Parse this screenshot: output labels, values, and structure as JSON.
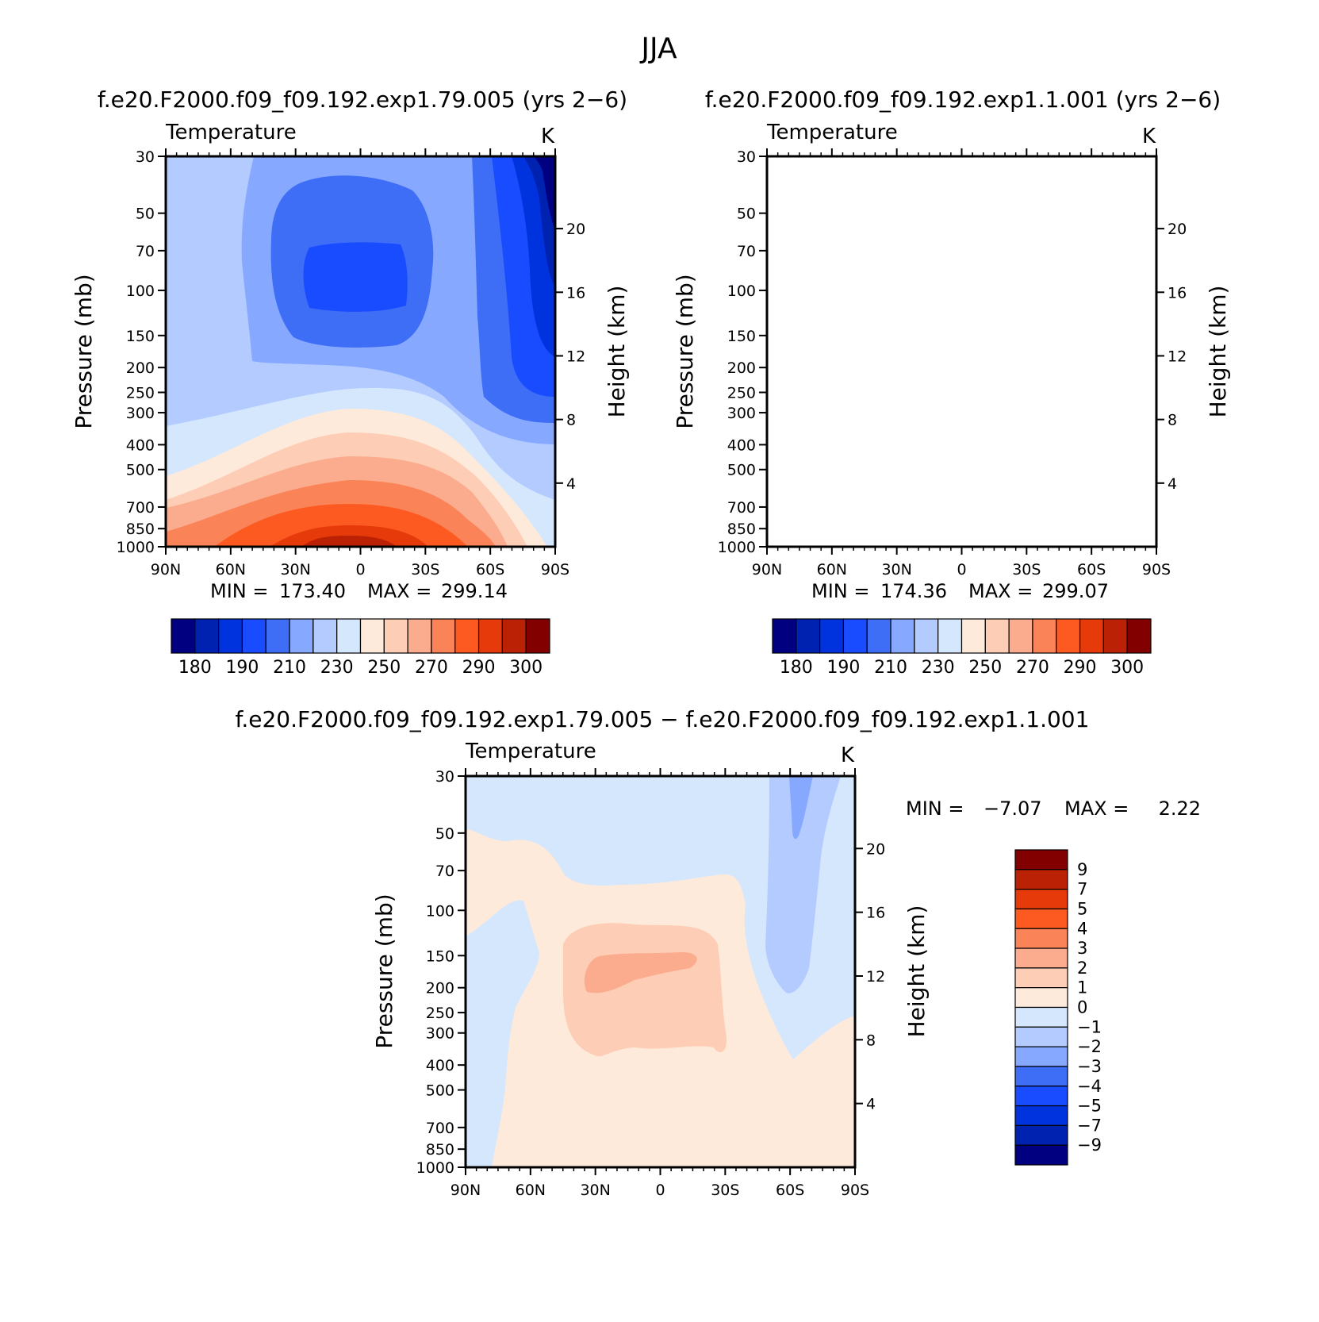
{
  "figure": {
    "title": "JJA",
    "panels": {
      "left_title": "f.e20.F2000.f09_f09.192.exp1.79.005 (yrs 2−6)",
      "right_title": "f.e20.F2000.f09_f09.192.exp1.1.001 (yrs 2−6)",
      "diff_title": "f.e20.F2000.f09_f09.192.exp1.79.005 − f.e20.F2000.f09_f09.192.exp1.1.001"
    },
    "axis_text": {
      "ylabel": "Pressure (mb)",
      "ylabel_right": "Height (km)",
      "variable": "Temperature",
      "units": "K"
    },
    "stats": {
      "left": {
        "min_label": "MIN =",
        "min": "173.40",
        "max_label": "MAX =",
        "max": "299.14"
      },
      "right": {
        "min_label": "MIN =",
        "min": "174.36",
        "max_label": "MAX =",
        "max": "299.07"
      },
      "diff": {
        "min_label": "MIN =",
        "min": "−7.07",
        "max_label": "MAX =",
        "max": "2.22"
      }
    }
  },
  "chart_data": [
    {
      "type": "heatmap",
      "name": "left",
      "title": "f.e20.F2000.f09_f09.192.exp1.79.005 (yrs 2−6)",
      "subtitle": "Temperature",
      "units": "K",
      "xlabel": "",
      "ylabel": "Pressure (mb)",
      "ylabel_right": "Height (km)",
      "x_ticks": [
        "90N",
        "60N",
        "30N",
        "0",
        "30S",
        "60S",
        "90S"
      ],
      "y_ticks": [
        30,
        50,
        70,
        100,
        150,
        200,
        250,
        300,
        400,
        500,
        700,
        850,
        1000
      ],
      "y_scale": "log",
      "height_ticks": [
        20,
        16,
        12,
        8,
        4
      ],
      "min": 173.4,
      "max": 299.14,
      "colorbar": {
        "levels": [
          175,
          180,
          185,
          190,
          200,
          210,
          220,
          230,
          240,
          250,
          260,
          270,
          280,
          290,
          300
        ],
        "tick_labels": [
          "180",
          "190",
          "210",
          "230",
          "250",
          "270",
          "290",
          "300"
        ],
        "colors": [
          "#000080",
          "#0022b0",
          "#0033dd",
          "#1a4cff",
          "#3f6ef6",
          "#86a9ff",
          "#b4cbff",
          "#d5e7fd",
          "#feeadb",
          "#fdcdb6",
          "#fcac8e",
          "#fb8358",
          "#fd5a22",
          "#e73a0a",
          "#bb2205",
          "#830000"
        ]
      }
    },
    {
      "type": "heatmap",
      "name": "right",
      "title": "f.e20.F2000.f09_f09.192.exp1.1.001 (yrs 2−6)",
      "subtitle": "Temperature",
      "units": "K",
      "xlabel": "",
      "ylabel": "Pressure (mb)",
      "ylabel_right": "Height (km)",
      "x_ticks": [
        "90N",
        "60N",
        "30N",
        "0",
        "30S",
        "60S",
        "90S"
      ],
      "y_ticks": [
        30,
        50,
        70,
        100,
        150,
        200,
        250,
        300,
        400,
        500,
        700,
        850,
        1000
      ],
      "y_scale": "log",
      "height_ticks": [
        20,
        16,
        12,
        8,
        4
      ],
      "min": 174.36,
      "max": 299.07,
      "colorbar": {
        "levels": [
          175,
          180,
          185,
          190,
          200,
          210,
          220,
          230,
          240,
          250,
          260,
          270,
          280,
          290,
          300
        ],
        "tick_labels": [
          "180",
          "190",
          "210",
          "230",
          "250",
          "270",
          "290",
          "300"
        ],
        "colors": [
          "#000080",
          "#0022b0",
          "#0033dd",
          "#1a4cff",
          "#3f6ef6",
          "#86a9ff",
          "#b4cbff",
          "#d5e7fd",
          "#feeadb",
          "#fdcdb6",
          "#fcac8e",
          "#fb8358",
          "#fd5a22",
          "#e73a0a",
          "#bb2205",
          "#830000"
        ]
      }
    },
    {
      "type": "heatmap",
      "name": "difference",
      "title": "f.e20.F2000.f09_f09.192.exp1.79.005 − f.e20.F2000.f09_f09.192.exp1.1.001",
      "subtitle": "Temperature",
      "units": "K",
      "xlabel": "",
      "ylabel": "Pressure (mb)",
      "ylabel_right": "Height (km)",
      "x_ticks": [
        "90N",
        "60N",
        "30N",
        "0",
        "30S",
        "60S",
        "90S"
      ],
      "y_ticks": [
        30,
        50,
        70,
        100,
        150,
        200,
        250,
        300,
        400,
        500,
        700,
        850,
        1000
      ],
      "y_scale": "log",
      "height_ticks": [
        20,
        16,
        12,
        8,
        4
      ],
      "min": -7.07,
      "max": 2.22,
      "colorbar": {
        "orientation": "vertical",
        "tick_labels": [
          "9",
          "7",
          "5",
          "4",
          "3",
          "2",
          "1",
          "0",
          "−1",
          "−2",
          "−3",
          "−4",
          "−5",
          "−7",
          "−9"
        ],
        "colors": [
          "#830000",
          "#bb2205",
          "#e73a0a",
          "#fd5a22",
          "#fb8358",
          "#fcac8e",
          "#fdcdb6",
          "#feeadb",
          "#d5e7fd",
          "#b4cbff",
          "#86a9ff",
          "#3f6ef6",
          "#1a4cff",
          "#0033dd",
          "#0022b0",
          "#000080"
        ]
      }
    }
  ]
}
